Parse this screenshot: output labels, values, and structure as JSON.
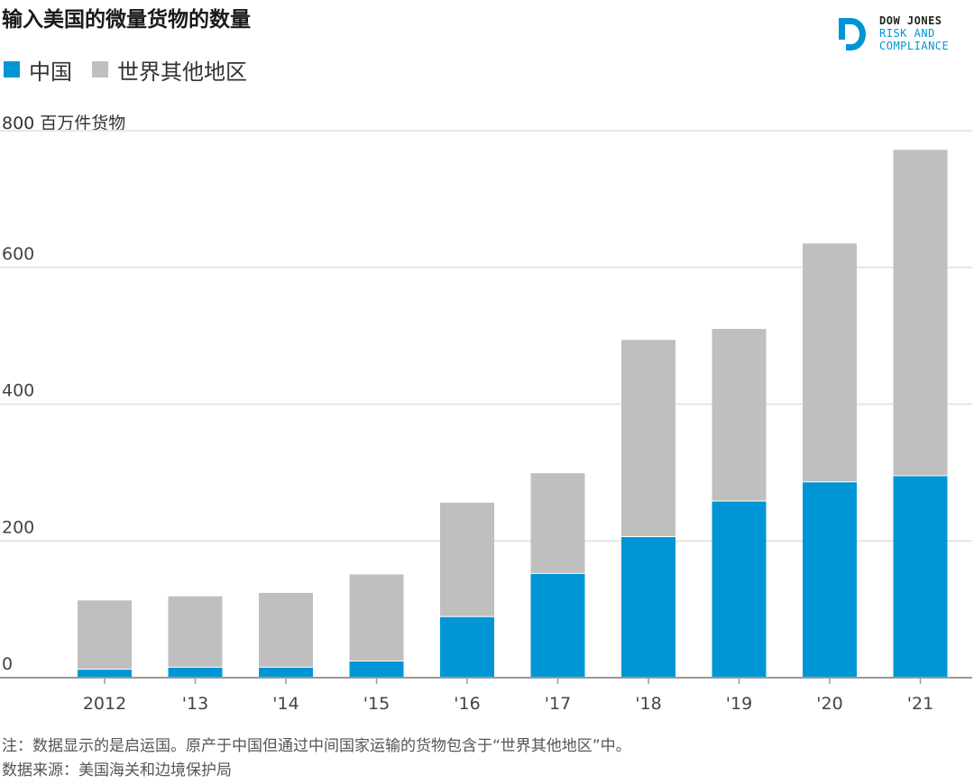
{
  "header": {
    "title": "输入美国的微量货物的数量"
  },
  "logo": {
    "line1": "DOW JONES",
    "line2": "RISK AND",
    "line3": "COMPLIANCE"
  },
  "colors": {
    "china": "#0096d6",
    "rest": "#bfbfbf",
    "grid": "#e6e6e6",
    "axis": "#999999",
    "tick_text": "#444444"
  },
  "chart_data": {
    "type": "bar",
    "stacked": true,
    "title": "输入美国的微量货物的数量",
    "unit_label": "800 百万件货物",
    "categories": [
      "2012",
      "'13",
      "'14",
      "'15",
      "'16",
      "'17",
      "'18",
      "'19",
      "'20",
      "'21"
    ],
    "series": [
      {
        "name": "中国",
        "color": "#0096d6",
        "values": [
          13,
          16,
          16,
          25,
          90,
          153,
          207,
          259,
          287,
          296
        ]
      },
      {
        "name": "世界其他地区",
        "color": "#bfbfbf",
        "values": [
          100,
          103,
          108,
          126,
          166,
          146,
          287,
          251,
          348,
          476
        ]
      }
    ],
    "totals": [
      113,
      119,
      124,
      151,
      256,
      299,
      494,
      510,
      635,
      772
    ],
    "y_ticks": [
      {
        "value": 0,
        "label": "0"
      },
      {
        "value": 200,
        "label": "200"
      },
      {
        "value": 400,
        "label": "400"
      },
      {
        "value": 600,
        "label": "600"
      },
      {
        "value": 800,
        "label": ""
      }
    ],
    "ylim": [
      0,
      800
    ],
    "xlabel": "",
    "ylabel": "百万件货物",
    "grid": true,
    "legend_position": "top-left"
  },
  "footer": {
    "note": "注：数据显示的是启运国。原产于中国但通过中间国家运输的货物包含于“世界其他地区”中。",
    "source": "数据来源：美国海关和边境保护局"
  }
}
